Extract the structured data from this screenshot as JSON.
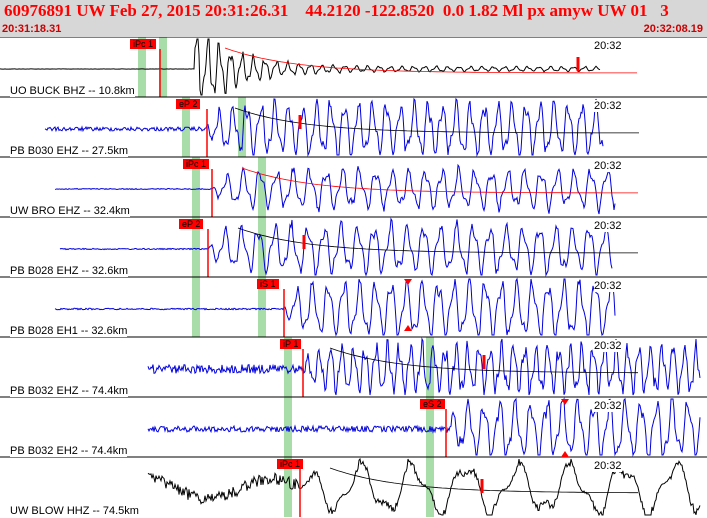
{
  "header": {
    "title": "60976891 UW Feb 27, 2015 20:31:26.31    44.2120 -122.8520  0.0 1.82 Ml px amyw UW 01   3",
    "time_start": "20:31:18.31",
    "time_end": "20:32:08.19"
  },
  "colors": {
    "header_bg": "#d7d7d7",
    "header_text": "#ff0000",
    "trace_blue": "#0000dd",
    "trace_black": "#000000",
    "pick_red": "#ff0000",
    "window_green": "#a8dca8"
  },
  "panels": [
    {
      "label": "UO BUCK BHZ -- 10.8km",
      "time": "20:32",
      "pick": "iPc 1",
      "color": "black"
    },
    {
      "label": "PB B030 EHZ -- 27.5km",
      "time": "20:32",
      "pick": "eP 2",
      "color": "blue"
    },
    {
      "label": "UW BRO EHZ -- 32.4km",
      "time": "20:32",
      "pick": "iPc 1",
      "color": "blue"
    },
    {
      "label": "PB B028 EHZ -- 32.6km",
      "time": "20:32",
      "pick": "eP 2",
      "color": "blue"
    },
    {
      "label": "PB B028 EH1 -- 32.6km",
      "time": "20:32",
      "pick": "iS 1",
      "color": "blue"
    },
    {
      "label": "PB B032 EHZ -- 74.4km",
      "time": "20:32",
      "pick": "iP 1",
      "color": "blue"
    },
    {
      "label": "PB B032 EH2 -- 74.4km",
      "time": "20:32",
      "pick": "eS 2",
      "color": "blue"
    },
    {
      "label": "UW BLOW HHZ -- 74.5km",
      "time": "20:32",
      "pick": "iPc 1",
      "color": "black"
    }
  ]
}
